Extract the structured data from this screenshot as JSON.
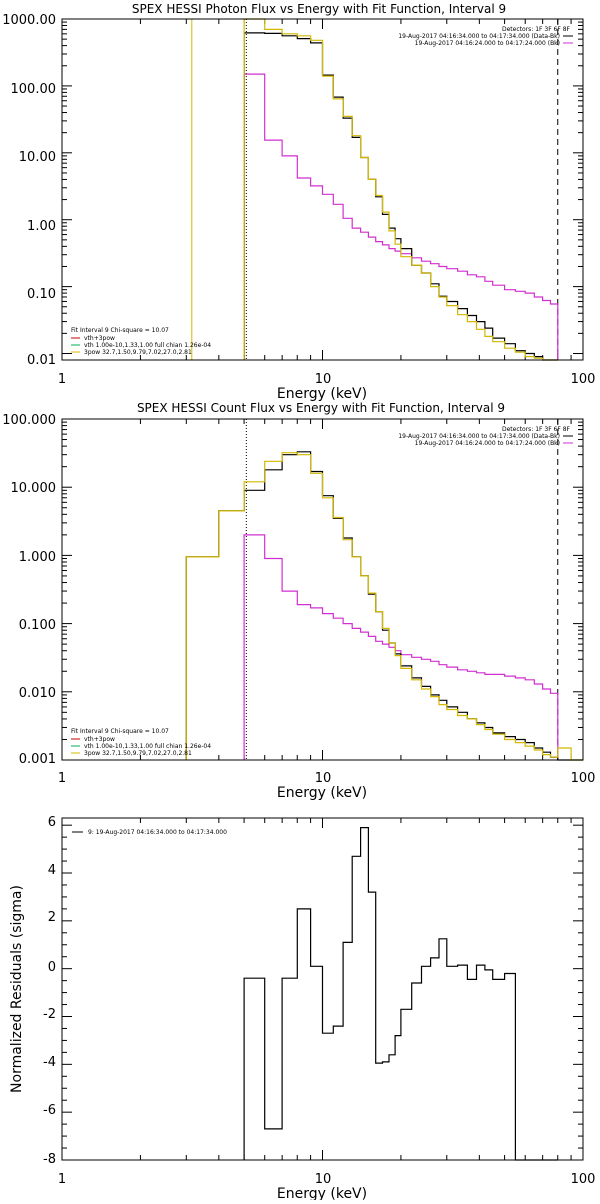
{
  "colors": {
    "data": "#000000",
    "model": "#d4b800",
    "background": "#d12fd1",
    "thermal": "#cc0000",
    "green": "#00b050"
  },
  "chart_data": [
    {
      "type": "line",
      "title": "SPEX HESSI Photon Flux vs Energy with Fit Function, Interval 9",
      "xlabel": "Energy (keV)",
      "ylabel": "",
      "xscale": "log",
      "yscale": "log",
      "xlim": [
        1,
        100
      ],
      "ylim": [
        0.008,
        1000
      ],
      "x_ticks": [
        "1",
        "10",
        "100"
      ],
      "y_ticks": [
        "1000.00",
        "100.00",
        "10.00",
        "1.00",
        "0.10",
        "0.01"
      ],
      "fit_range_keV": [
        5.1,
        80
      ],
      "edges": [
        5,
        6,
        7,
        8,
        9,
        10,
        11,
        12,
        13,
        14,
        15,
        16,
        17,
        18,
        19,
        20,
        22,
        24,
        26,
        28,
        30,
        33,
        36,
        39,
        42,
        45,
        50,
        55,
        60,
        65,
        70,
        75,
        80
      ],
      "series": [
        {
          "name": "",
          "color": "data",
          "values": [
            620,
            610,
            560,
            510,
            440,
            145,
            68,
            33,
            17,
            8.5,
            4.0,
            2.2,
            1.2,
            0.75,
            0.52,
            0.37,
            0.21,
            0.16,
            0.11,
            0.072,
            0.06,
            0.047,
            0.037,
            0.03,
            0.024,
            0.017,
            0.014,
            0.011,
            0.01,
            0.009,
            0.008,
            0.0075
          ]
        },
        {
          "name": "",
          "color": "model",
          "values": [
            1000,
            700,
            600,
            560,
            480,
            140,
            64,
            35,
            18,
            8.5,
            4.0,
            2.3,
            1.3,
            0.68,
            0.43,
            0.28,
            0.21,
            0.16,
            0.1,
            0.07,
            0.052,
            0.038,
            0.03,
            0.023,
            0.018,
            0.015,
            0.012,
            0.0105,
            0.009,
            0.0085,
            0.008,
            0.0075
          ]
        },
        {
          "name": "",
          "color": "background",
          "values": [
            150,
            15.5,
            9.0,
            4.2,
            3.2,
            2.4,
            1.7,
            1.05,
            0.75,
            0.65,
            0.55,
            0.47,
            0.42,
            0.37,
            0.34,
            0.31,
            0.27,
            0.24,
            0.22,
            0.2,
            0.185,
            0.17,
            0.15,
            0.14,
            0.12,
            0.105,
            0.09,
            0.085,
            0.08,
            0.07,
            0.062,
            0.055
          ]
        }
      ],
      "extra_lines": {
        "yellow_spike_x": 3.15
      },
      "legend_top": [
        {
          "text": "Detectors: 1F 3F 6F 8F",
          "color": "data"
        },
        {
          "text": "19-Aug-2017 04:16:34.000 to 04:17:34.000 (Data-Bk)",
          "color": "data"
        },
        {
          "text": "19-Aug-2017 04:16:24.000 to 04:17:24.000 (Bk)",
          "color": "background"
        }
      ],
      "legend_bottom": [
        {
          "text": "Fit Interval  9    Chi-square = 10.07",
          "color": "data"
        },
        {
          "text": "vth+3pow",
          "color": "thermal"
        },
        {
          "text": "vth 1.00e-10,1.33,1.00  full chian 1.26e-04",
          "color": "green"
        },
        {
          "text": "3pow 32.7,1.50,9.79,7.02,27.0,2.81",
          "color": "model"
        }
      ]
    },
    {
      "type": "line",
      "title": "SPEX HESSI Count Flux vs Energy with Fit Function, Interval 9",
      "xlabel": "Energy (keV)",
      "ylabel": "",
      "xscale": "log",
      "yscale": "log",
      "xlim": [
        1,
        100
      ],
      "ylim": [
        0.001,
        100
      ],
      "x_ticks": [
        "1",
        "10",
        "100"
      ],
      "y_ticks": [
        "100.000",
        "10.000",
        "1.000",
        "0.100",
        "0.010",
        "0.001"
      ],
      "fit_range_keV": [
        5.1,
        80
      ],
      "edges": [
        3,
        4,
        5,
        6,
        7,
        8,
        9,
        10,
        11,
        12,
        13,
        14,
        15,
        16,
        17,
        18,
        19,
        20,
        22,
        24,
        26,
        28,
        30,
        33,
        36,
        39,
        42,
        45,
        50,
        55,
        60,
        65,
        70,
        75,
        80,
        90,
        100
      ],
      "series": [
        {
          "name": "",
          "color": "data",
          "values": [
            0.95,
            4.5,
            9.0,
            18,
            30,
            33,
            17,
            7.5,
            3.5,
            1.8,
            0.95,
            0.5,
            0.27,
            0.15,
            0.08,
            0.052,
            0.036,
            0.024,
            0.016,
            0.012,
            0.009,
            0.0075,
            0.006,
            0.005,
            0.004,
            0.0035,
            0.003,
            0.0025,
            0.0022,
            0.002,
            0.0018,
            0.0015,
            0.0013,
            0.0011,
            0.001,
            0.001
          ]
        },
        {
          "name": "",
          "color": "model",
          "values": [
            0.95,
            4.5,
            12,
            24,
            32,
            30,
            16,
            7.0,
            3.6,
            1.7,
            0.95,
            0.5,
            0.28,
            0.15,
            0.085,
            0.052,
            0.034,
            0.022,
            0.015,
            0.011,
            0.0085,
            0.0065,
            0.0055,
            0.0045,
            0.004,
            0.0033,
            0.0028,
            0.0024,
            0.002,
            0.0018,
            0.0016,
            0.0014,
            0.0012,
            0.0011,
            0.0015,
            0.001
          ]
        },
        {
          "name": "",
          "color": "background",
          "values": [
            null,
            null,
            2.0,
            0.9,
            0.3,
            0.19,
            0.17,
            0.14,
            0.12,
            0.1,
            0.085,
            0.075,
            0.065,
            0.055,
            0.05,
            0.045,
            0.04,
            0.035,
            0.032,
            0.03,
            0.028,
            0.025,
            0.023,
            0.021,
            0.02,
            0.019,
            0.018,
            0.018,
            0.017,
            0.016,
            0.015,
            0.013,
            0.011,
            0.0095,
            null,
            null
          ]
        }
      ],
      "legend_top": [
        {
          "text": "Detectors: 1F 3F 6F 8F",
          "color": "data"
        },
        {
          "text": "19-Aug-2017 04:16:34.000 to 04:17:34.000 (Data-Bk)",
          "color": "data"
        },
        {
          "text": "19-Aug-2017 04:16:24.000 to 04:17:24.000 (Bk)",
          "color": "background"
        }
      ],
      "legend_bottom": [
        {
          "text": "Fit Interval  9    Chi-square = 10.07",
          "color": "data"
        },
        {
          "text": "vth+3pow",
          "color": "thermal"
        },
        {
          "text": "vth 1.00e-10,1.33,1.00  full chian 1.26e-04",
          "color": "green"
        },
        {
          "text": "3pow 32.7,1.50,9.79,7.02,27.0,2.81",
          "color": "model"
        }
      ]
    },
    {
      "type": "line",
      "title": "",
      "xlabel": "Energy (keV)",
      "ylabel": "Normalized Residuals (sigma)",
      "xscale": "log",
      "yscale": "linear",
      "xlim": [
        1,
        100
      ],
      "ylim": [
        -8,
        6.3
      ],
      "x_ticks": [
        "1",
        "10",
        "100"
      ],
      "y_ticks": [
        "6",
        "4",
        "2",
        "0",
        "-2",
        "-4",
        "-6",
        "-8"
      ],
      "edges": [
        5,
        6,
        7,
        8,
        9,
        10,
        11,
        12,
        13,
        14,
        15,
        16,
        17,
        18,
        19,
        20,
        22,
        24,
        26,
        28,
        30,
        33,
        36,
        39,
        42,
        45,
        50,
        55,
        60,
        65,
        70,
        75,
        80
      ],
      "series": [
        {
          "name": "9: 19-Aug-2017 04:16:34.000 to 04:17:34.000",
          "color": "data",
          "values": [
            -0.4,
            -6.7,
            -0.4,
            2.5,
            0.1,
            -2.7,
            -2.4,
            1.1,
            4.7,
            5.9,
            3.2,
            -3.95,
            -3.9,
            -3.6,
            -2.8,
            -1.7,
            -0.6,
            0.1,
            0.45,
            1.25,
            0.1,
            0.15,
            -0.45,
            0.15,
            -0.05,
            -0.45,
            -0.2,
            -8,
            -8,
            -8,
            -8,
            -8
          ]
        }
      ]
    }
  ]
}
